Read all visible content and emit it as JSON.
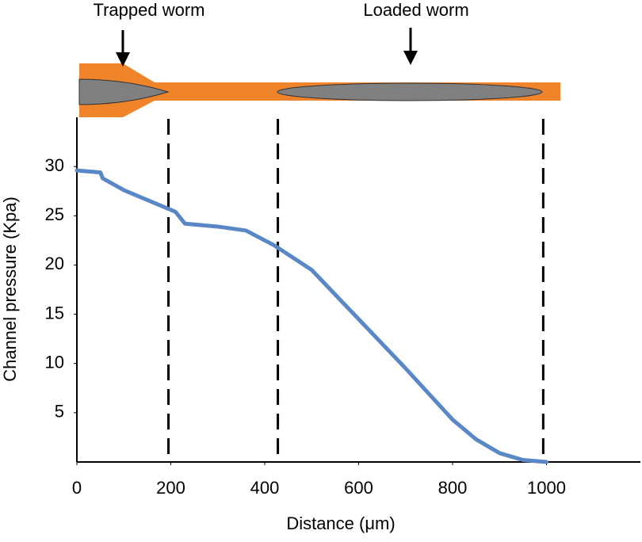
{
  "chart_data": {
    "type": "line",
    "xlabel": "Distance (μm)",
    "ylabel": "Channel pressure (Kpa)",
    "annotations": [
      "Trapped worm",
      "Loaded worm"
    ],
    "x": [
      0,
      50,
      55,
      100,
      150,
      190,
      210,
      230,
      300,
      360,
      420,
      500,
      550,
      600,
      700,
      800,
      850,
      900,
      950,
      1000
    ],
    "series": [
      {
        "name": "Channel pressure",
        "color": "#5a87c6",
        "values": [
          29.6,
          29.4,
          28.8,
          27.6,
          26.6,
          25.8,
          25.4,
          24.2,
          23.9,
          23.5,
          22,
          19.5,
          17,
          14.5,
          9.5,
          4.3,
          2.3,
          0.9,
          0.2,
          0
        ]
      }
    ],
    "vlines": [
      195,
      428,
      993
    ],
    "xlim": [
      0,
      1200
    ],
    "xticks": [
      0,
      200,
      400,
      600,
      800,
      1000
    ],
    "ylim": [
      0,
      35
    ],
    "yticks": [
      5,
      10,
      15,
      20,
      25,
      30
    ]
  }
}
